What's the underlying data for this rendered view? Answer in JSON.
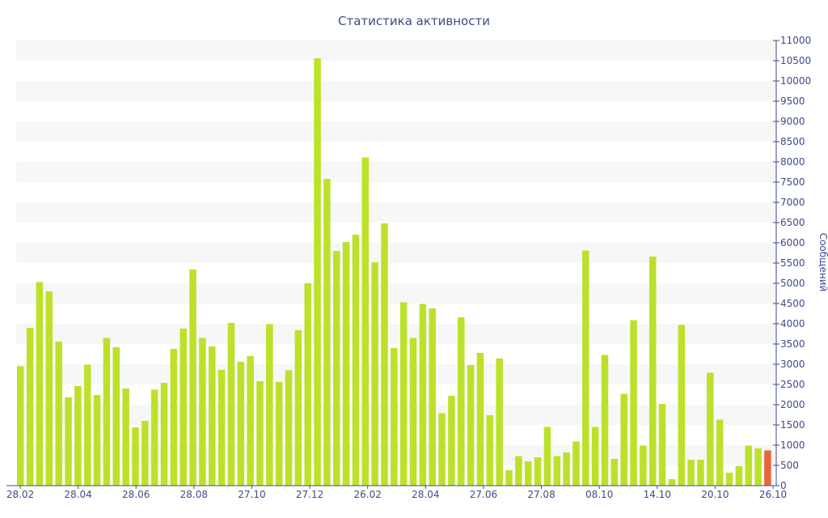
{
  "chart_data": {
    "type": "bar",
    "title": "Статистика активности",
    "ylabel": "Сообщений",
    "xlabel": "",
    "ylim": [
      0,
      11000
    ],
    "y_ticks": [
      0,
      500,
      1000,
      1500,
      2000,
      2500,
      3000,
      3500,
      4000,
      4500,
      5000,
      5500,
      6000,
      6500,
      7000,
      7500,
      8000,
      8500,
      9000,
      9500,
      10000,
      10500,
      11000
    ],
    "y_axis_side": "right",
    "grid": "alternating horizontal bands",
    "x_tick_labels": [
      "28.02",
      "28.04",
      "28.06",
      "28.08",
      "27.10",
      "27.12",
      "26.02",
      "28.04",
      "27.06",
      "27.08",
      "08.10",
      "14.10",
      "20.10",
      "26.10"
    ],
    "values": [
      2950,
      3900,
      5030,
      4800,
      3560,
      2180,
      2460,
      2990,
      2240,
      3650,
      3420,
      2400,
      1440,
      1600,
      2370,
      2540,
      3380,
      3880,
      5340,
      3650,
      3440,
      2860,
      4020,
      3060,
      3200,
      2580,
      3990,
      2560,
      2850,
      3840,
      5000,
      10560,
      7580,
      5800,
      6020,
      6200,
      8110,
      5520,
      6480,
      3400,
      4530,
      3650,
      4490,
      4380,
      1790,
      2220,
      4160,
      2980,
      3280,
      1740,
      3140,
      380,
      730,
      600,
      700,
      1450,
      730,
      820,
      1090,
      5810,
      1450,
      3230,
      660,
      2270,
      4090,
      990,
      5660,
      2020,
      160,
      3970,
      640,
      640,
      2790,
      1630,
      320,
      480,
      990,
      920,
      870
    ],
    "highlight_index": 78,
    "bar_color": "#bde12b",
    "highlight_color": "#e8663a"
  }
}
